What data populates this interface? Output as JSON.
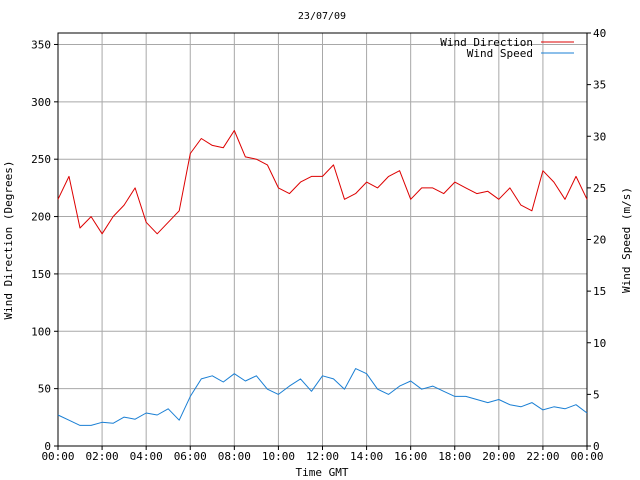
{
  "chart_data": {
    "type": "line",
    "title": "23/07/09",
    "xlabel": "Time GMT",
    "ylabel_left": "Wind Direction (Degrees)",
    "ylabel_right": "Wind Speed (m/s)",
    "x_ticks": [
      "00:00",
      "02:00",
      "04:00",
      "06:00",
      "08:00",
      "10:00",
      "12:00",
      "14:00",
      "16:00",
      "18:00",
      "20:00",
      "22:00",
      "00:00"
    ],
    "xlim_hours": [
      0,
      24
    ],
    "ylim_left": [
      0,
      360
    ],
    "ylim_right": [
      0,
      40
    ],
    "yticks_left": [
      0,
      50,
      100,
      150,
      200,
      250,
      300,
      350
    ],
    "yticks_right": [
      0,
      5,
      10,
      15,
      20,
      25,
      30,
      35,
      40
    ],
    "grid": true,
    "legend_position": "top-right",
    "series": [
      {
        "name": "Wind Direction",
        "axis": "left",
        "color": "#dd0000",
        "x_hours": [
          0,
          0.5,
          1,
          1.5,
          2,
          2.5,
          3,
          3.5,
          4,
          4.5,
          5,
          5.5,
          6,
          6.5,
          7,
          7.5,
          8,
          8.5,
          9,
          9.5,
          10,
          10.5,
          11,
          11.5,
          12,
          12.5,
          13,
          13.5,
          14,
          14.5,
          15,
          15.5,
          16,
          16.5,
          17,
          17.5,
          18,
          18.5,
          19,
          19.5,
          20,
          20.5,
          21,
          21.5,
          22,
          22.5,
          23,
          23.5,
          24
        ],
        "values": [
          215,
          235,
          190,
          200,
          185,
          200,
          210,
          225,
          195,
          185,
          195,
          205,
          255,
          268,
          262,
          260,
          275,
          252,
          250,
          245,
          225,
          220,
          230,
          235,
          235,
          245,
          215,
          220,
          230,
          225,
          235,
          240,
          215,
          225,
          225,
          220,
          230,
          225,
          220,
          222,
          215,
          225,
          210,
          205,
          240,
          230,
          215,
          235,
          215
        ]
      },
      {
        "name": "Wind Speed",
        "axis": "right",
        "color": "#1a7fd4",
        "x_hours": [
          0,
          0.5,
          1,
          1.5,
          2,
          2.5,
          3,
          3.5,
          4,
          4.5,
          5,
          5.5,
          6,
          6.5,
          7,
          7.5,
          8,
          8.5,
          9,
          9.5,
          10,
          10.5,
          11,
          11.5,
          12,
          12.5,
          13,
          13.5,
          14,
          14.5,
          15,
          15.5,
          16,
          16.5,
          17,
          17.5,
          18,
          18.5,
          19,
          19.5,
          20,
          20.5,
          21,
          21.5,
          22,
          22.5,
          23,
          23.5,
          24
        ],
        "values": [
          3,
          2.5,
          2,
          2,
          2.3,
          2.2,
          2.8,
          2.6,
          3.2,
          3,
          3.6,
          2.5,
          4.8,
          6.5,
          6.8,
          6.2,
          7,
          6.3,
          6.8,
          5.5,
          5,
          5.8,
          6.5,
          5.3,
          6.8,
          6.5,
          5.5,
          7.5,
          7,
          5.5,
          5,
          5.8,
          6.3,
          5.5,
          5.8,
          5.3,
          4.8,
          4.8,
          4.5,
          4.2,
          4.5,
          4,
          3.8,
          4.2,
          3.5,
          3.8,
          3.6,
          4,
          3.2
        ]
      }
    ]
  }
}
